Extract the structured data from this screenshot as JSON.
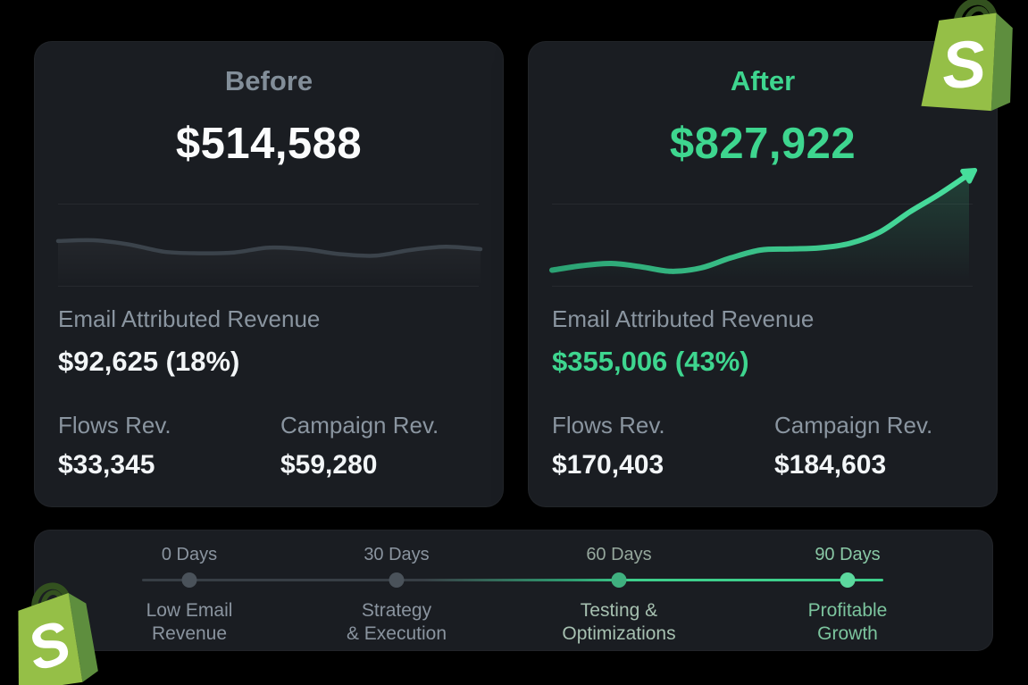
{
  "colors": {
    "background": "#000000",
    "card_bg": "#1a1d22",
    "accent_green": "#3ed68f",
    "line_green": "#3ecf8c",
    "muted_gray_text": "#8a95a0",
    "white_text": "#f2f5f7",
    "before_line_gray": "#3b434b",
    "inactive_dot": "#4a525a",
    "active_dot": "#3fb07f",
    "bright_dot": "#5cd89e",
    "shopify_green": "#95BF47",
    "shopify_green_dark": "#5E8E3E"
  },
  "before_card": {
    "title": "Before",
    "total": "$514,588",
    "email_label": "Email Attributed Revenue",
    "email_value": "$92,625 (18%)",
    "flows_label": "Flows Rev.",
    "flows_value": "$33,345",
    "campaign_label": "Campaign Rev.",
    "campaign_value": "$59,280"
  },
  "after_card": {
    "title": "After",
    "total": "$827,922",
    "email_label": "Email Attributed Revenue",
    "email_value": "$355,006 (43%)",
    "flows_label": "Flows Rev.",
    "flows_value": "$170,403",
    "campaign_label": "Campaign Rev.",
    "campaign_value": "$184,603"
  },
  "timeline": {
    "milestones": [
      {
        "days": "0 Days",
        "label": "Low Email\nRevenue",
        "state": "inactive"
      },
      {
        "days": "30 Days",
        "label": "Strategy\n& Execution",
        "state": "inactive"
      },
      {
        "days": "60 Days",
        "label": "Testing &\nOptimizations",
        "state": "active"
      },
      {
        "days": "90 Days",
        "label": "Profitable\nGrowth",
        "state": "active-bright"
      }
    ]
  },
  "logos": {
    "shopify_letter": "S"
  },
  "chart_data": [
    {
      "type": "line",
      "name": "Before email revenue sparkline (unlabeled decorative axes, values normalized 0-1)",
      "x": [
        1,
        2,
        3,
        4,
        5,
        6,
        7,
        8,
        9,
        10,
        11,
        12,
        13
      ],
      "values": [
        0.55,
        0.56,
        0.51,
        0.42,
        0.4,
        0.41,
        0.47,
        0.45,
        0.39,
        0.37,
        0.44,
        0.48,
        0.45
      ],
      "title": "",
      "xlabel": "",
      "ylabel": "",
      "ylim": [
        0,
        1
      ],
      "grid": false,
      "legend": "none",
      "stroke_color": "#3b434b",
      "arrow_end": false
    },
    {
      "type": "line",
      "name": "After email revenue trend with upward arrow (unlabeled decorative axes, values normalized 0-1)",
      "x": [
        1,
        2,
        3,
        4,
        5,
        6,
        7,
        8,
        9,
        10,
        11,
        12,
        13,
        14,
        15
      ],
      "values": [
        0.14,
        0.18,
        0.2,
        0.17,
        0.13,
        0.16,
        0.25,
        0.32,
        0.33,
        0.34,
        0.38,
        0.48,
        0.66,
        0.82,
        1.0
      ],
      "title": "",
      "xlabel": "",
      "ylabel": "",
      "ylim": [
        0,
        1
      ],
      "grid": false,
      "legend": "none",
      "stroke_color": "#3ecf8c",
      "arrow_end": true
    }
  ]
}
